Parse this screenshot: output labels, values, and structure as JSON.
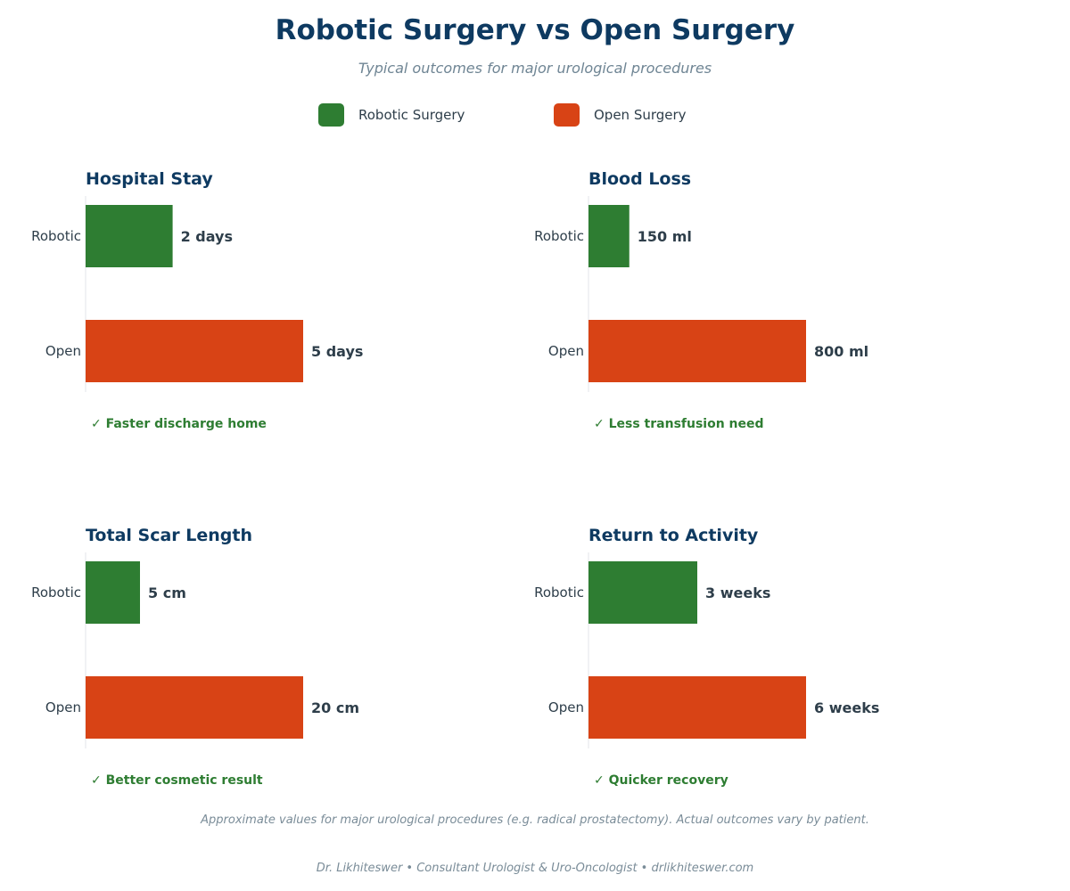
{
  "header": {
    "title": "Robotic Surgery vs Open Surgery",
    "subtitle": "Typical outcomes for major urological procedures"
  },
  "legend": [
    {
      "label": "Robotic Surgery",
      "color": "#2e7d32"
    },
    {
      "label": "Open Surgery",
      "color": "#d84315"
    }
  ],
  "chart_data": [
    {
      "type": "bar",
      "orientation": "horizontal",
      "title": "Hospital Stay",
      "categories": [
        "Robotic",
        "Open"
      ],
      "values": [
        2,
        5
      ],
      "value_labels": [
        "2 days",
        "5 days"
      ],
      "colors": [
        "#2e7d32",
        "#d84315"
      ],
      "xlim": [
        0,
        10
      ],
      "note": "✓ Faster discharge home"
    },
    {
      "type": "bar",
      "orientation": "horizontal",
      "title": "Blood Loss",
      "categories": [
        "Robotic",
        "Open"
      ],
      "values": [
        150,
        800
      ],
      "value_labels": [
        "150 ml",
        "800 ml"
      ],
      "colors": [
        "#2e7d32",
        "#d84315"
      ],
      "xlim": [
        0,
        1600
      ],
      "note": "✓ Less transfusion need"
    },
    {
      "type": "bar",
      "orientation": "horizontal",
      "title": "Total Scar Length",
      "categories": [
        "Robotic",
        "Open"
      ],
      "values": [
        5,
        20
      ],
      "value_labels": [
        "5 cm",
        "20 cm"
      ],
      "colors": [
        "#2e7d32",
        "#d84315"
      ],
      "xlim": [
        0,
        40
      ],
      "note": "✓ Better cosmetic result"
    },
    {
      "type": "bar",
      "orientation": "horizontal",
      "title": "Return to Activity",
      "categories": [
        "Robotic",
        "Open"
      ],
      "values": [
        3,
        6
      ],
      "value_labels": [
        "3 weeks",
        "6 weeks"
      ],
      "colors": [
        "#2e7d32",
        "#d84315"
      ],
      "xlim": [
        0,
        12
      ],
      "note": "✓ Quicker recovery"
    }
  ],
  "footer": {
    "footnote": "Approximate values for major urological procedures (e.g. radical prostatectomy). Actual outcomes vary by patient.",
    "credit": "Dr. Likhiteswer  •  Consultant Urologist & Uro-Oncologist  •  drlikhiteswer.com"
  },
  "colors": {
    "title": "#0e3a61",
    "text": "#2e3e4a",
    "note": "#2e7d32",
    "muted": "#6f8594"
  }
}
